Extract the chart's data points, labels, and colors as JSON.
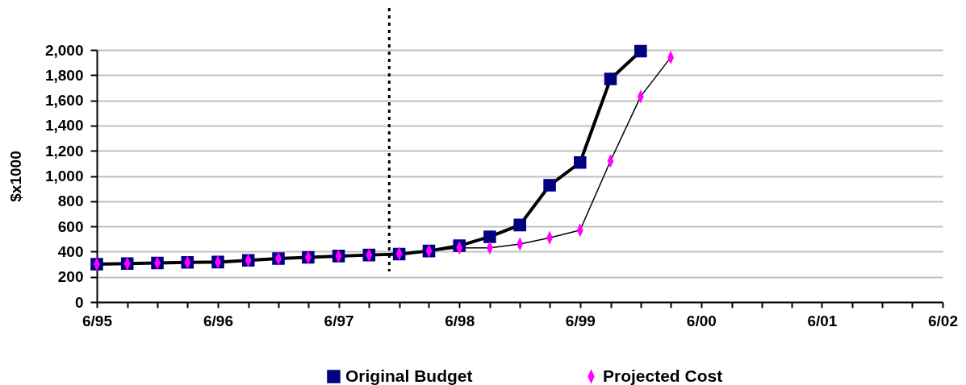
{
  "chart_data": {
    "type": "line",
    "ylabel": "$x1000",
    "x": [
      "1995-06",
      "1995-09",
      "1995-12",
      "1996-03",
      "1996-06",
      "1996-09",
      "1996-12",
      "1997-03",
      "1997-06",
      "1997-09",
      "1997-12",
      "1998-03",
      "1998-06",
      "1998-09",
      "1998-12",
      "1999-03",
      "1999-06",
      "1999-09",
      "1999-12",
      "2000-03"
    ],
    "series": [
      {
        "name": "Original Budget",
        "color": "#000080",
        "marker": "square",
        "values": [
          300,
          305,
          310,
          315,
          317,
          330,
          345,
          355,
          365,
          373,
          380,
          405,
          447,
          518,
          611,
          926,
          1107,
          1770,
          1990,
          null
        ]
      },
      {
        "name": "Projected Cost",
        "color": "#ff00ff",
        "marker": "diamond",
        "values": [
          300,
          305,
          310,
          315,
          317,
          330,
          345,
          355,
          365,
          373,
          385,
          405,
          430,
          430,
          460,
          510,
          570,
          1120,
          1630,
          1940
        ]
      }
    ],
    "xlim": [
      "1995-06",
      "2002-06"
    ],
    "xticks": [
      {
        "value": "1995-06",
        "label": "6/95"
      },
      {
        "value": "1995-09",
        "label": null
      },
      {
        "value": "1995-12",
        "label": null
      },
      {
        "value": "1996-03",
        "label": null
      },
      {
        "value": "1996-06",
        "label": "6/96"
      },
      {
        "value": "1996-09",
        "label": null
      },
      {
        "value": "1996-12",
        "label": null
      },
      {
        "value": "1997-03",
        "label": null
      },
      {
        "value": "1997-06",
        "label": "6/97"
      },
      {
        "value": "1997-09",
        "label": null
      },
      {
        "value": "1997-12",
        "label": null
      },
      {
        "value": "1998-03",
        "label": null
      },
      {
        "value": "1998-06",
        "label": "6/98"
      },
      {
        "value": "1998-09",
        "label": null
      },
      {
        "value": "1998-12",
        "label": null
      },
      {
        "value": "1999-03",
        "label": null
      },
      {
        "value": "1999-06",
        "label": "6/99"
      },
      {
        "value": "1999-09",
        "label": null
      },
      {
        "value": "1999-12",
        "label": null
      },
      {
        "value": "2000-03",
        "label": null
      },
      {
        "value": "2000-06",
        "label": "6/00"
      },
      {
        "value": "2000-09",
        "label": null
      },
      {
        "value": "2000-12",
        "label": null
      },
      {
        "value": "2001-03",
        "label": null
      },
      {
        "value": "2001-06",
        "label": "6/01"
      },
      {
        "value": "2001-09",
        "label": null
      },
      {
        "value": "2001-12",
        "label": null
      },
      {
        "value": "2002-03",
        "label": null
      },
      {
        "value": "2002-06",
        "label": "6/02"
      }
    ],
    "ylim": [
      0,
      2000
    ],
    "yticks": [
      0,
      200,
      400,
      600,
      800,
      {
        "value": 1000,
        "label": "1,000"
      },
      {
        "value": 1200,
        "label": "1,200"
      },
      {
        "value": 1400,
        "label": "1,400"
      },
      {
        "value": 1600,
        "label": "1,600"
      },
      {
        "value": 1800,
        "label": "1,800"
      },
      {
        "value": 2000,
        "label": "2,000"
      }
    ],
    "ref_lines": [
      {
        "axis": "x",
        "value": "1997-11",
        "line_style": "dotted"
      }
    ],
    "grid": "y",
    "legend": "bottom"
  }
}
